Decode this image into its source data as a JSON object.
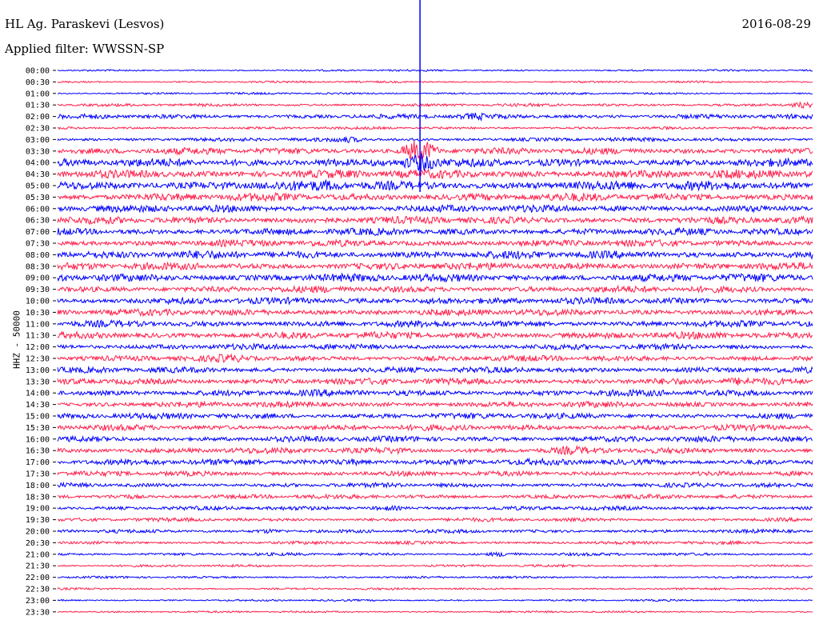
{
  "header": {
    "station": "HL Ag. Paraskevi (Lesvos)",
    "filter": "Applied filter: WWSSN-SP",
    "date": "2016-08-29"
  },
  "chart_data": {
    "type": "line",
    "ylabel": "HHZ - 50000",
    "row_labels": [
      "00:00",
      "00:30",
      "01:00",
      "01:30",
      "02:00",
      "02:30",
      "03:00",
      "03:30",
      "04:00",
      "04:30",
      "05:00",
      "05:30",
      "06:00",
      "06:30",
      "07:00",
      "07:30",
      "08:00",
      "08:30",
      "09:00",
      "09:30",
      "10:00",
      "10:30",
      "11:00",
      "11:30",
      "12:00",
      "12:30",
      "13:00",
      "13:30",
      "14:00",
      "14:30",
      "15:00",
      "15:30",
      "16:00",
      "16:30",
      "17:00",
      "17:30",
      "18:00",
      "18:30",
      "19:00",
      "19:30",
      "20:00",
      "20:30",
      "21:00",
      "21:30",
      "22:00",
      "22:30",
      "23:00",
      "23:30"
    ],
    "row_amplitude": [
      1.2,
      1.3,
      1.4,
      2.0,
      3.2,
      1.8,
      2.6,
      4.5,
      5.5,
      6.0,
      6.5,
      5.5,
      5.0,
      5.0,
      4.8,
      4.8,
      5.5,
      5.0,
      5.5,
      4.5,
      4.5,
      4.5,
      4.5,
      4.8,
      4.0,
      4.0,
      4.0,
      4.5,
      4.5,
      4.0,
      4.0,
      4.0,
      4.0,
      4.0,
      4.2,
      3.5,
      3.0,
      3.0,
      2.8,
      2.5,
      2.5,
      2.2,
      2.0,
      1.6,
      1.5,
      1.4,
      1.3,
      1.3
    ],
    "events": [
      {
        "row": 3,
        "x": 0.985,
        "amp": 2.5
      },
      {
        "row": 4,
        "x": 0.555,
        "amp": 2.2
      },
      {
        "row": 6,
        "x": 0.385,
        "amp": 2.0
      },
      {
        "row": 7,
        "x": 0.48,
        "amp": 14.0
      },
      {
        "row": 8,
        "x": 0.48,
        "amp": 9.0
      },
      {
        "row": 8,
        "x": 0.36,
        "amp": 2.2
      },
      {
        "row": 10,
        "x": 0.36,
        "amp": 2.0
      },
      {
        "row": 20,
        "x": 0.5,
        "amp": 2.2
      },
      {
        "row": 25,
        "x": 0.225,
        "amp": 2.0
      },
      {
        "row": 27,
        "x": 0.9,
        "amp": 2.0
      },
      {
        "row": 33,
        "x": 0.445,
        "amp": 2.0
      },
      {
        "row": 33,
        "x": 0.68,
        "amp": 2.0
      },
      {
        "row": 34,
        "x": 0.39,
        "amp": 2.0
      },
      {
        "row": 37,
        "x": 0.09,
        "amp": 1.8
      },
      {
        "row": 38,
        "x": 0.44,
        "amp": 1.8
      },
      {
        "row": 40,
        "x": 0.28,
        "amp": 1.8
      },
      {
        "row": 42,
        "x": 0.59,
        "amp": 1.8
      }
    ],
    "series_colors": [
      "#0000ff",
      "#ff1f4b"
    ]
  }
}
